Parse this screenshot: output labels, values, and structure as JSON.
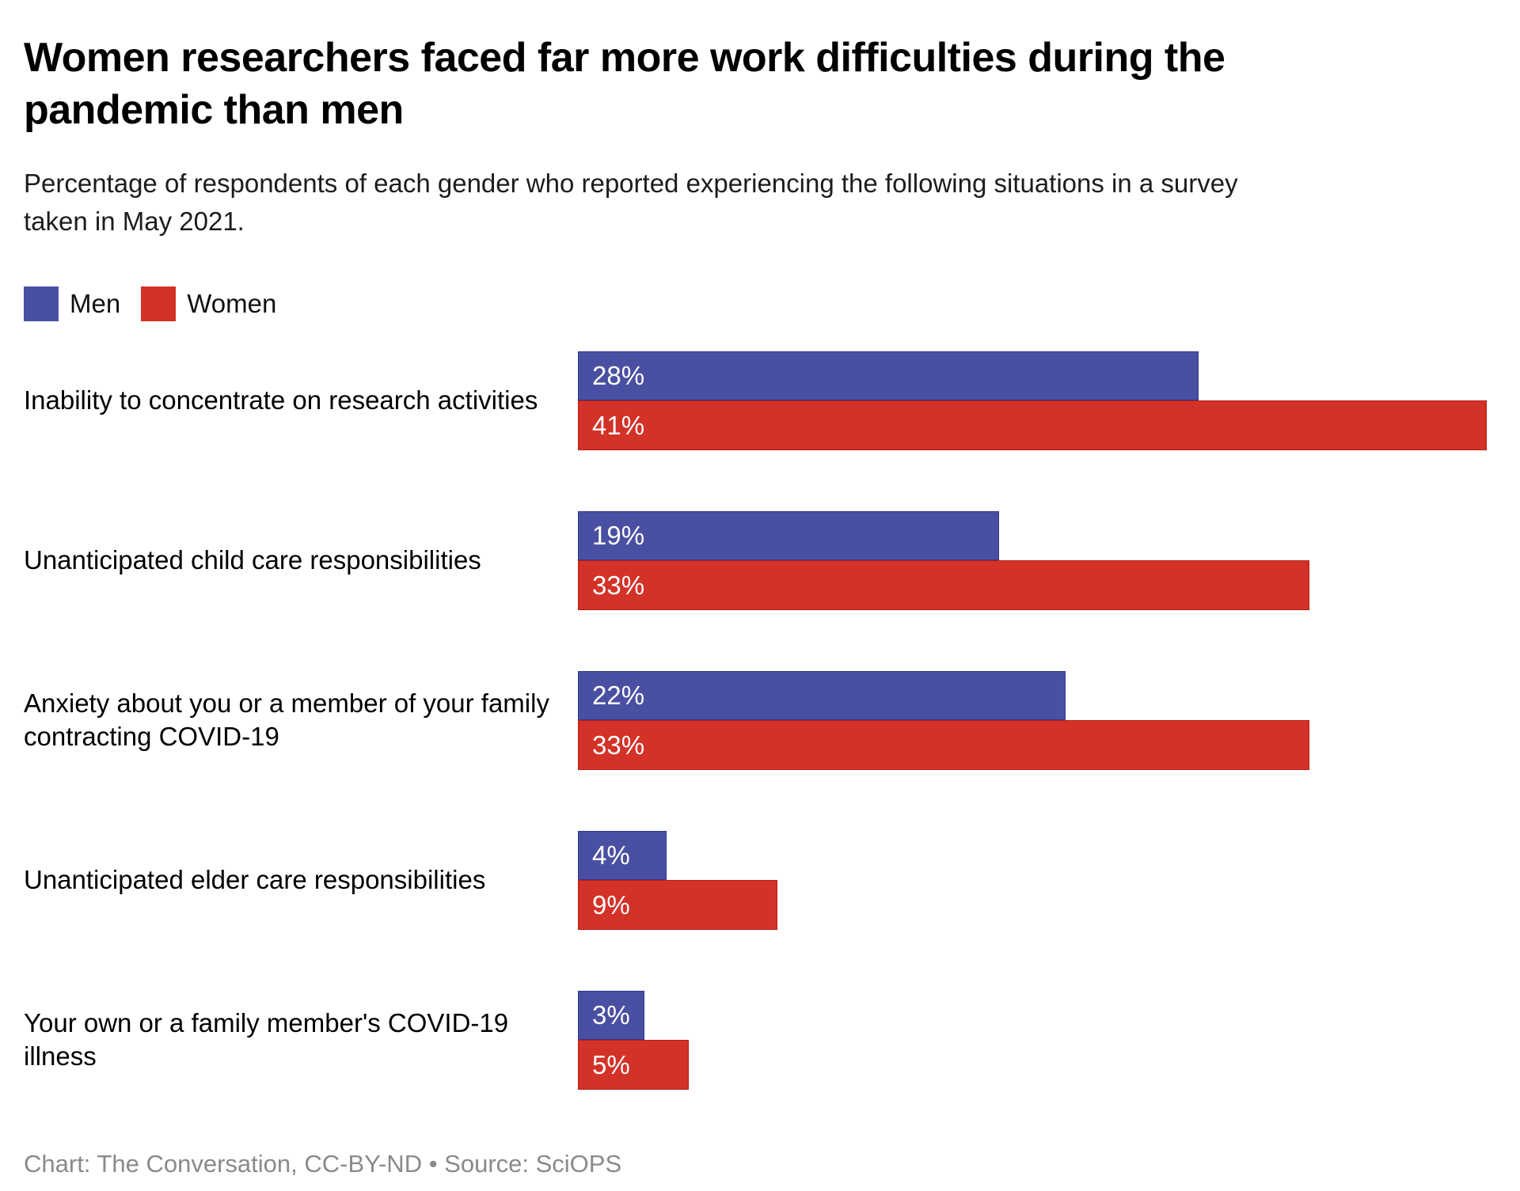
{
  "header": {
    "title": "Women researchers faced far more work difficulties during the pandemic than men",
    "subtitle": "Percentage of respondents of each gender who reported experiencing the following situations in a survey taken in May 2021."
  },
  "legend": [
    {
      "label": "Men",
      "color": "#4A50A1"
    },
    {
      "label": "Women",
      "color": "#D33228"
    }
  ],
  "chart_data": {
    "type": "bar",
    "orientation": "horizontal",
    "title": "Women researchers faced far more work difficulties during the pandemic than men",
    "subtitle": "Percentage of respondents of each gender who reported experiencing the following situations in a survey taken in May 2021.",
    "categories": [
      "Inability to concentrate on research activities",
      "Unanticipated child care responsibilities",
      "Anxiety about you or a member of your family contracting COVID-19",
      "Unanticipated elder care responsibilities",
      "Your own or a family member's COVID-19 illness"
    ],
    "series": [
      {
        "name": "Men",
        "color": "#4A50A1",
        "border_color": "#31368C",
        "values": [
          28,
          19,
          22,
          4,
          3
        ]
      },
      {
        "name": "Women",
        "color": "#D33228",
        "border_color": "#BB1A15",
        "values": [
          41,
          33,
          33,
          9,
          5
        ]
      }
    ],
    "value_suffix": "%",
    "xlim": [
      0,
      41
    ],
    "grid": false,
    "legend_position": "top-left",
    "bar_label_position": "inside-left",
    "bar_label_color": "#ffffff"
  },
  "footer": {
    "text": "Chart: The Conversation, CC-BY-ND • Source: SciOPS"
  }
}
